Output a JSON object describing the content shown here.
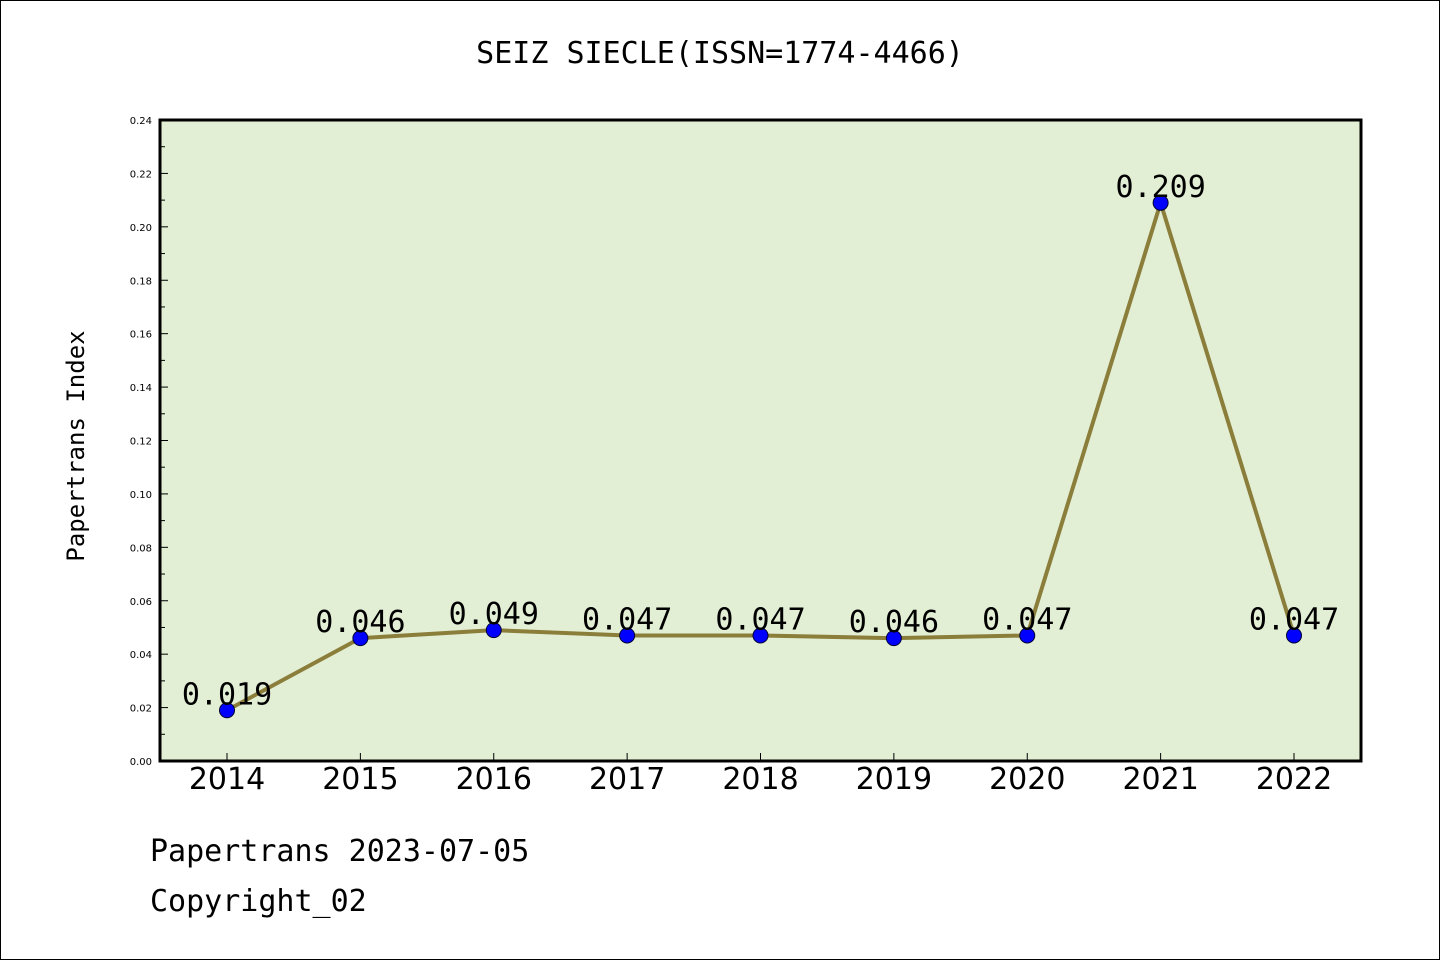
{
  "chart_data": {
    "type": "line",
    "title": "SEIZ SIECLE(ISSN=1774-4466)",
    "ylabel": "Papertrans Index",
    "xlabel": "",
    "categories": [
      "2014",
      "2015",
      "2016",
      "2017",
      "2018",
      "2019",
      "2020",
      "2021",
      "2022"
    ],
    "series": [
      {
        "values": [
          0.019,
          0.046,
          0.049,
          0.047,
          0.047,
          0.046,
          0.047,
          0.209,
          0.047
        ]
      }
    ],
    "data_labels": [
      "0.019",
      "0.046",
      "0.049",
      "0.047",
      "0.047",
      "0.046",
      "0.047",
      "0.209",
      "0.047"
    ],
    "ylim": [
      0,
      0.24
    ],
    "yticks": [
      "0.00",
      "0.02",
      "0.04",
      "0.06",
      "0.08",
      "0.10",
      "0.12",
      "0.14",
      "0.16",
      "0.18",
      "0.20",
      "0.22",
      "0.24"
    ],
    "grid": false,
    "legend": "none",
    "colors": {
      "plot_background": "#e2efd5",
      "line": "#8b7d3a",
      "marker": "#0000ff"
    }
  },
  "footer": {
    "line1": "Papertrans 2023-07-05",
    "line2": "Copyright_02"
  }
}
